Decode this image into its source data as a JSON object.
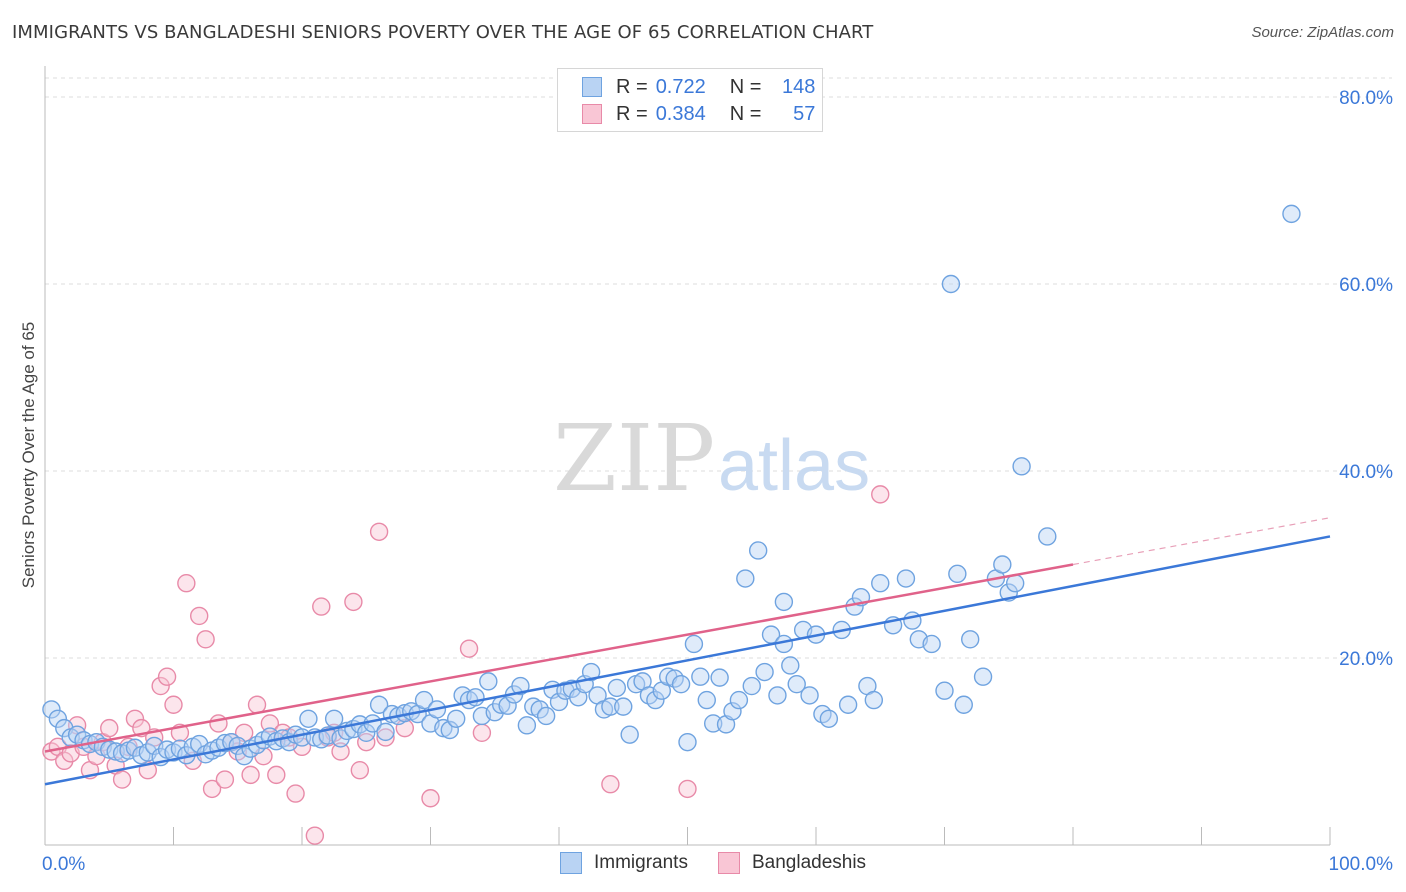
{
  "title": "IMMIGRANTS VS BANGLADESHI SENIORS POVERTY OVER THE AGE OF 65 CORRELATION CHART",
  "source": "Source: ZipAtlas.com",
  "watermark": {
    "zip": "ZIP",
    "atlas": "atlas"
  },
  "legend": {
    "rows": [
      {
        "r_label": "R =",
        "r_value": "0.722",
        "n_label": "N =",
        "n_value": "148",
        "color": "#6fa3e0",
        "fill": "#b9d3f3"
      },
      {
        "r_label": "R =",
        "r_value": "0.384",
        "n_label": "N =",
        "n_value": "57",
        "color": "#e88aa8",
        "fill": "#f9c6d5"
      }
    ]
  },
  "bottom_legend": [
    {
      "label": "Immigrants",
      "color": "#6fa3e0",
      "fill": "#b9d3f3"
    },
    {
      "label": "Bangladeshis",
      "color": "#e88aa8",
      "fill": "#f9c6d5"
    }
  ],
  "chart_data": {
    "type": "scatter",
    "title": "IMMIGRANTS VS BANGLADESHI SENIORS POVERTY OVER THE AGE OF 65 CORRELATION CHART",
    "xlabel": "",
    "ylabel": "Seniors Poverty Over the Age of 65",
    "xlim": [
      0,
      100
    ],
    "ylim": [
      0,
      80
    ],
    "x_tick_labels": [
      "0.0%",
      "100.0%"
    ],
    "y_tick_labels": [
      "20.0%",
      "40.0%",
      "60.0%",
      "80.0%"
    ],
    "y_ticks": [
      20,
      40,
      60,
      80
    ],
    "grid": true,
    "series": [
      {
        "name": "Immigrants",
        "color": "#3b78d8",
        "fill": "#b9d3f3",
        "stroke": "#6fa3e0",
        "trend": {
          "x0": 0,
          "y0": 6.5,
          "x1": 100,
          "y1": 33.0
        },
        "points": [
          [
            0.5,
            14.5
          ],
          [
            1,
            13.5
          ],
          [
            1.5,
            12.5
          ],
          [
            2,
            11.5
          ],
          [
            2.5,
            11.8
          ],
          [
            3,
            11.2
          ],
          [
            3.5,
            10.8
          ],
          [
            4,
            11.0
          ],
          [
            4.5,
            10.5
          ],
          [
            5,
            10.2
          ],
          [
            5.5,
            10.0
          ],
          [
            6,
            9.8
          ],
          [
            6.5,
            10.1
          ],
          [
            7,
            10.4
          ],
          [
            7.5,
            9.6
          ],
          [
            8,
            9.9
          ],
          [
            8.5,
            10.6
          ],
          [
            9,
            9.4
          ],
          [
            9.5,
            10.2
          ],
          [
            10,
            9.9
          ],
          [
            10.5,
            10.3
          ],
          [
            11,
            9.6
          ],
          [
            11.5,
            10.5
          ],
          [
            12,
            10.8
          ],
          [
            12.5,
            9.7
          ],
          [
            13,
            10.1
          ],
          [
            13.5,
            10.4
          ],
          [
            14,
            10.9
          ],
          [
            14.5,
            11.0
          ],
          [
            15,
            10.6
          ],
          [
            15.5,
            9.5
          ],
          [
            16,
            10.3
          ],
          [
            16.5,
            10.7
          ],
          [
            17,
            11.2
          ],
          [
            17.5,
            11.6
          ],
          [
            18,
            11.1
          ],
          [
            18.5,
            11.4
          ],
          [
            19,
            11.0
          ],
          [
            19.5,
            11.8
          ],
          [
            20,
            11.5
          ],
          [
            20.5,
            13.5
          ],
          [
            21,
            11.5
          ],
          [
            21.5,
            11.3
          ],
          [
            22,
            11.7
          ],
          [
            22.5,
            13.5
          ],
          [
            23,
            11.4
          ],
          [
            23.5,
            12.2
          ],
          [
            24,
            12.4
          ],
          [
            24.5,
            12.9
          ],
          [
            25,
            12.0
          ],
          [
            25.5,
            13.0
          ],
          [
            26,
            15.0
          ],
          [
            26.5,
            12.1
          ],
          [
            27,
            14.0
          ],
          [
            27.5,
            13.8
          ],
          [
            28,
            14.1
          ],
          [
            28.5,
            14.3
          ],
          [
            29,
            14.0
          ],
          [
            29.5,
            15.5
          ],
          [
            30,
            13.0
          ],
          [
            30.5,
            14.5
          ],
          [
            31,
            12.5
          ],
          [
            31.5,
            12.3
          ],
          [
            32,
            13.5
          ],
          [
            32.5,
            16.0
          ],
          [
            33,
            15.5
          ],
          [
            33.5,
            15.8
          ],
          [
            34,
            13.8
          ],
          [
            34.5,
            17.5
          ],
          [
            35,
            14.2
          ],
          [
            35.5,
            15.0
          ],
          [
            36,
            14.9
          ],
          [
            36.5,
            16.1
          ],
          [
            37,
            17.0
          ],
          [
            37.5,
            12.8
          ],
          [
            38,
            14.8
          ],
          [
            38.5,
            14.5
          ],
          [
            39,
            13.8
          ],
          [
            39.5,
            16.6
          ],
          [
            40,
            15.3
          ],
          [
            40.5,
            16.5
          ],
          [
            41,
            16.7
          ],
          [
            41.5,
            15.8
          ],
          [
            42,
            17.2
          ],
          [
            42.5,
            18.5
          ],
          [
            43,
            16.0
          ],
          [
            43.5,
            14.5
          ],
          [
            44,
            14.8
          ],
          [
            44.5,
            16.8
          ],
          [
            45,
            14.8
          ],
          [
            45.5,
            11.8
          ],
          [
            46,
            17.2
          ],
          [
            46.5,
            17.5
          ],
          [
            47,
            16.0
          ],
          [
            47.5,
            15.5
          ],
          [
            48,
            16.5
          ],
          [
            48.5,
            18.0
          ],
          [
            49,
            17.8
          ],
          [
            49.5,
            17.2
          ],
          [
            50,
            11.0
          ],
          [
            50.5,
            21.5
          ],
          [
            51,
            18.0
          ],
          [
            51.5,
            15.5
          ],
          [
            52,
            13.0
          ],
          [
            52.5,
            17.9
          ],
          [
            53,
            12.9
          ],
          [
            53.5,
            14.3
          ],
          [
            54,
            15.5
          ],
          [
            54.5,
            28.5
          ],
          [
            55,
            17.0
          ],
          [
            55.5,
            31.5
          ],
          [
            56,
            18.5
          ],
          [
            56.5,
            22.5
          ],
          [
            57,
            16.0
          ],
          [
            57.5,
            26.0
          ],
          [
            58,
            19.2
          ],
          [
            58.5,
            17.2
          ],
          [
            59,
            23.0
          ],
          [
            59.5,
            16.0
          ],
          [
            60,
            22.5
          ],
          [
            60.5,
            14.0
          ],
          [
            61,
            13.5
          ],
          [
            62,
            23.0
          ],
          [
            62.5,
            15.0
          ],
          [
            63,
            25.5
          ],
          [
            63.5,
            26.5
          ],
          [
            64,
            17.0
          ],
          [
            64.5,
            15.5
          ],
          [
            65,
            28.0
          ],
          [
            66,
            23.5
          ],
          [
            67,
            28.5
          ],
          [
            67.5,
            24.0
          ],
          [
            68,
            22.0
          ],
          [
            69,
            21.5
          ],
          [
            70,
            16.5
          ],
          [
            70.5,
            60.0
          ],
          [
            71,
            29.0
          ],
          [
            71.5,
            15.0
          ],
          [
            72,
            22.0
          ],
          [
            73,
            18.0
          ],
          [
            74,
            28.5
          ],
          [
            74.5,
            30.0
          ],
          [
            75,
            27.0
          ],
          [
            75.5,
            28.0
          ],
          [
            76,
            40.5
          ],
          [
            78,
            33.0
          ],
          [
            97,
            67.5
          ],
          [
            57.5,
            21.5
          ]
        ]
      },
      {
        "name": "Bangladeshis",
        "color": "#e0628a",
        "fill": "#f9c6d5",
        "stroke": "#e88aa8",
        "trend": {
          "x0": 0,
          "y0": 10.0,
          "x1": 80,
          "y1": 30.0,
          "dash_to_x": 100,
          "dash_to_y": 35.0
        },
        "points": [
          [
            0.5,
            10.0
          ],
          [
            1,
            10.5
          ],
          [
            1.5,
            9.0
          ],
          [
            2,
            9.8
          ],
          [
            2.5,
            12.8
          ],
          [
            3,
            10.5
          ],
          [
            3.5,
            8.0
          ],
          [
            4,
            9.5
          ],
          [
            4.5,
            11.0
          ],
          [
            5,
            12.5
          ],
          [
            5.5,
            8.5
          ],
          [
            6,
            7.0
          ],
          [
            6.5,
            10.5
          ],
          [
            7,
            13.5
          ],
          [
            7.5,
            12.5
          ],
          [
            8,
            8.0
          ],
          [
            8.5,
            11.5
          ],
          [
            9,
            17.0
          ],
          [
            9.5,
            18.0
          ],
          [
            10,
            15.0
          ],
          [
            10.5,
            12.0
          ],
          [
            11,
            28.0
          ],
          [
            11.5,
            9.0
          ],
          [
            12,
            24.5
          ],
          [
            12.5,
            22.0
          ],
          [
            13,
            6.0
          ],
          [
            13.5,
            13.0
          ],
          [
            14,
            7.0
          ],
          [
            14.5,
            11.0
          ],
          [
            15,
            10.0
          ],
          [
            15.5,
            12.0
          ],
          [
            16,
            7.5
          ],
          [
            16.5,
            15.0
          ],
          [
            17,
            9.5
          ],
          [
            17.5,
            13.0
          ],
          [
            18,
            7.5
          ],
          [
            18.5,
            12.0
          ],
          [
            19,
            11.5
          ],
          [
            19.5,
            5.5
          ],
          [
            20,
            10.5
          ],
          [
            21,
            1.0
          ],
          [
            21.5,
            25.5
          ],
          [
            22,
            11.5
          ],
          [
            22.5,
            12.0
          ],
          [
            23,
            10.0
          ],
          [
            24,
            26.0
          ],
          [
            24.5,
            8.0
          ],
          [
            25,
            11.0
          ],
          [
            26,
            33.5
          ],
          [
            26.5,
            11.5
          ],
          [
            30,
            5.0
          ],
          [
            33,
            21.0
          ],
          [
            34,
            12.0
          ],
          [
            44,
            6.5
          ],
          [
            50,
            6.0
          ],
          [
            65,
            37.5
          ],
          [
            28,
            12.5
          ]
        ]
      }
    ]
  }
}
